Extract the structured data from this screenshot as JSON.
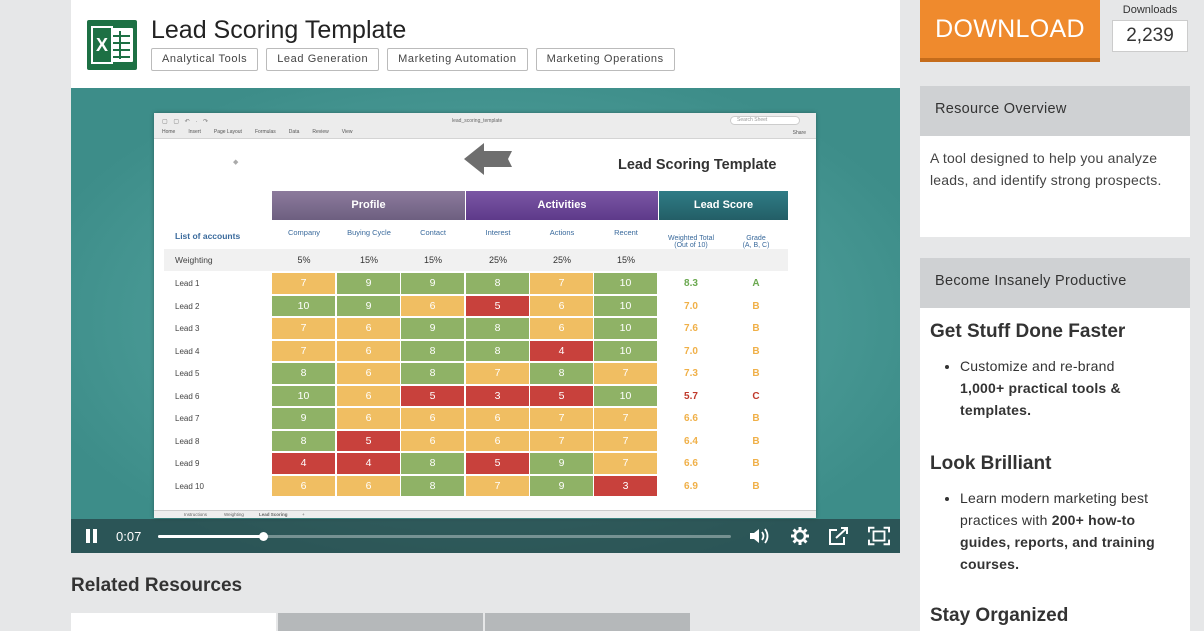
{
  "resource": {
    "title": "Lead Scoring Template",
    "icon": "excel-file-icon",
    "tags": [
      "Analytical Tools",
      "Lead Generation",
      "Marketing Automation",
      "Marketing Operations"
    ]
  },
  "download": {
    "button_label": "DOWNLOAD",
    "count_label": "Downloads",
    "count": "2,239"
  },
  "video": {
    "current_time": "0:07",
    "progress": 0.183,
    "controls": [
      "pause-icon",
      "volume-icon",
      "gear-icon",
      "share-icon",
      "fullscreen-icon"
    ]
  },
  "spreadsheet": {
    "file_name": "lead_scoring_template",
    "search_placeholder": "Search Sheet",
    "share_label": "Share",
    "ribbon_tabs": [
      "Home",
      "Insert",
      "Page Layout",
      "Formulas",
      "Data",
      "Review",
      "View"
    ],
    "title": "Lead Scoring Template",
    "groups": [
      "Profile",
      "Activities",
      "Lead Score"
    ],
    "accounts_header": "List of accounts",
    "columns": [
      "Company",
      "Buying Cycle",
      "Contact",
      "Interest",
      "Actions",
      "Recent"
    ],
    "score_columns": [
      "Weighted Total\n(Out of 10)",
      "Grade\n(A, B, C)"
    ],
    "weighting_label": "Weighting",
    "weights": [
      "5%",
      "15%",
      "15%",
      "25%",
      "25%",
      "15%"
    ],
    "rows": [
      {
        "label": "Lead 1",
        "values": [
          7,
          9,
          9,
          8,
          7,
          10
        ],
        "colors": [
          "y",
          "g",
          "g",
          "g",
          "y",
          "g"
        ],
        "total": "8.3",
        "grade": "A"
      },
      {
        "label": "Lead 2",
        "values": [
          10,
          9,
          6,
          5,
          6,
          10
        ],
        "colors": [
          "g",
          "g",
          "y",
          "r",
          "y",
          "g"
        ],
        "total": "7.0",
        "grade": "B"
      },
      {
        "label": "Lead 3",
        "values": [
          7,
          6,
          9,
          8,
          6,
          10
        ],
        "colors": [
          "y",
          "y",
          "g",
          "g",
          "y",
          "g"
        ],
        "total": "7.6",
        "grade": "B"
      },
      {
        "label": "Lead 4",
        "values": [
          7,
          6,
          8,
          8,
          4,
          10
        ],
        "colors": [
          "y",
          "y",
          "g",
          "g",
          "r",
          "g"
        ],
        "total": "7.0",
        "grade": "B"
      },
      {
        "label": "Lead 5",
        "values": [
          8,
          6,
          8,
          7,
          8,
          7
        ],
        "colors": [
          "g",
          "y",
          "g",
          "y",
          "g",
          "y"
        ],
        "total": "7.3",
        "grade": "B"
      },
      {
        "label": "Lead 6",
        "values": [
          10,
          6,
          5,
          3,
          5,
          10
        ],
        "colors": [
          "g",
          "y",
          "r",
          "r",
          "r",
          "g"
        ],
        "total": "5.7",
        "grade": "C"
      },
      {
        "label": "Lead 7",
        "values": [
          9,
          6,
          6,
          6,
          7,
          7
        ],
        "colors": [
          "g",
          "y",
          "y",
          "y",
          "y",
          "y"
        ],
        "total": "6.6",
        "grade": "B"
      },
      {
        "label": "Lead 8",
        "values": [
          8,
          5,
          6,
          6,
          7,
          7
        ],
        "colors": [
          "g",
          "r",
          "y",
          "y",
          "y",
          "y"
        ],
        "total": "6.4",
        "grade": "B"
      },
      {
        "label": "Lead 9",
        "values": [
          4,
          4,
          8,
          5,
          9,
          7
        ],
        "colors": [
          "r",
          "r",
          "g",
          "r",
          "g",
          "y"
        ],
        "total": "6.6",
        "grade": "B"
      },
      {
        "label": "Lead 10",
        "values": [
          6,
          6,
          8,
          7,
          9,
          3
        ],
        "colors": [
          "y",
          "y",
          "g",
          "y",
          "g",
          "r"
        ],
        "total": "6.9",
        "grade": "B"
      }
    ],
    "sheet_tabs": [
      "Instructions",
      "Weighting",
      "Lead Scoring",
      "+"
    ]
  },
  "related": {
    "title": "Related Resources"
  },
  "overview": {
    "heading": "Resource Overview",
    "text": "A tool designed to help you analyze leads, and identify strong prospects."
  },
  "productive": {
    "heading": "Become Insanely Productive",
    "sections": [
      {
        "title": "Get Stuff Done Faster",
        "line1": "Customize and re-brand",
        "bold": "1,000+ practical tools & templates."
      },
      {
        "title": "Look Brilliant",
        "line1": "Learn modern marketing best practices with",
        "bold": "200+ how-to guides, reports, and training courses."
      },
      {
        "title": "Stay Organized"
      }
    ]
  },
  "colors": {
    "download_orange": "#ef8a2d",
    "excel_green": "#1d7044",
    "cell_green": "#8fb266",
    "cell_yellow": "#f0be62",
    "cell_red": "#c8413c",
    "video_teal": "#3d8d89"
  }
}
